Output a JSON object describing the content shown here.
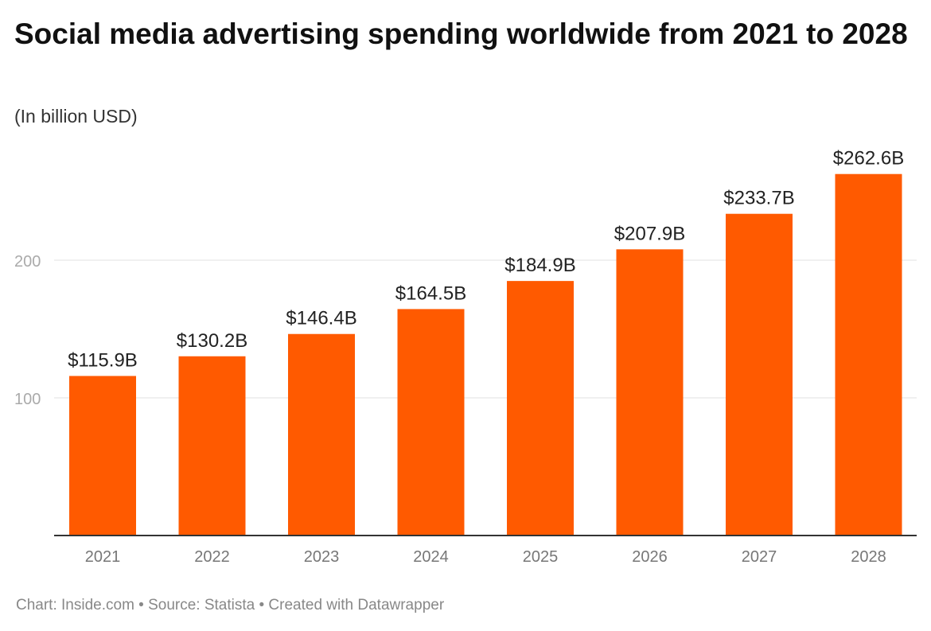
{
  "chart_data": {
    "type": "bar",
    "title": "Social media advertising spending worldwide from 2021 to 2028",
    "subtitle": "(In billion USD)",
    "categories": [
      "2021",
      "2022",
      "2023",
      "2024",
      "2025",
      "2026",
      "2027",
      "2028"
    ],
    "values": [
      115.9,
      130.2,
      146.4,
      164.5,
      184.9,
      207.9,
      233.7,
      262.6
    ],
    "labels": [
      "$115.9B",
      "$130.2B",
      "$146.4B",
      "$164.5B",
      "$184.9B",
      "$207.9B",
      "$233.7B",
      "$262.6B"
    ],
    "yticks": [
      100,
      200
    ],
    "ylim": [
      0,
      262.6
    ],
    "grid": true,
    "xlabel": "",
    "ylabel": "",
    "bar_color": "#ff5a00",
    "footer": "Chart: Inside.com • Source: Statista • Created with Datawrapper"
  }
}
